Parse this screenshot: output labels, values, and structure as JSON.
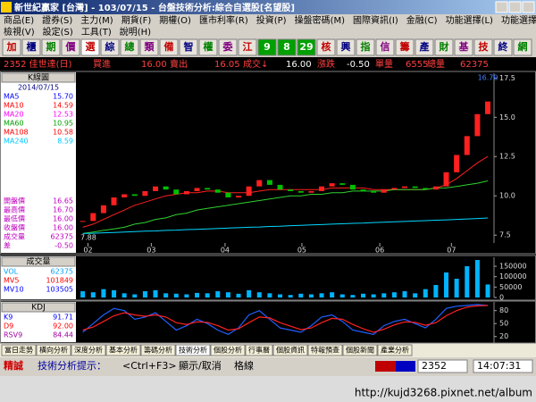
{
  "window": {
    "title": "新世紀贏家 [台灣] - 103/07/15 - 台盤技術分析:綜合自選股[名望股]",
    "menu_row1": [
      "商品(E)",
      "證券(S)",
      "主力(M)",
      "期貨(F)",
      "期權(O)",
      "匯市利率(R)",
      "投資(P)",
      "操盤密碼(M)",
      "國際資訊(I)",
      "金融(C)",
      "功能選擇(L)",
      "功能選擇(L)"
    ],
    "menu_row2": [
      "檢視(V)",
      "設定(S)",
      "工具(T)",
      "說明(H)"
    ]
  },
  "toolbar": [
    "加",
    "櫃",
    "期",
    "價",
    "選",
    "綜",
    "總",
    "類",
    "備",
    "智",
    "權",
    "委",
    "江",
    "9",
    "8",
    "29",
    "核",
    "興",
    "指",
    "信",
    "籌",
    "產",
    "財",
    "基",
    "技",
    "終",
    "網"
  ],
  "quote": {
    "symbol": "2352 佳世達(日)",
    "bid_label": "買進",
    "bid": "16.00",
    "ask_label": "賣出",
    "ask": "16.05",
    "last_label": "成交↓",
    "last": "16.00",
    "change_label": "漲跌",
    "change": "-0.50",
    "lot_label": "單量",
    "lot": "6555",
    "total_label": "總量",
    "total": "62375"
  },
  "chart_data": [
    {
      "type": "candlestick",
      "header": "K線圖",
      "date": "2014/07/15",
      "legend": [
        {
          "label": "MA5",
          "value": "15.70",
          "color": "#0000ff"
        },
        {
          "label": "MA10",
          "value": "14.59",
          "color": "#ff0000"
        },
        {
          "label": "MA20",
          "value": "12.53",
          "color": "#ff00ff"
        },
        {
          "label": "MA60",
          "value": "10.95",
          "color": "#00a000"
        },
        {
          "label": "MA108",
          "value": "10.58",
          "color": "#ff0000"
        },
        {
          "label": "MA240",
          "value": "8.59",
          "color": "#00c8ff"
        }
      ],
      "ohlc": [
        {
          "label": "開盤價",
          "value": "16.65"
        },
        {
          "label": "最高價",
          "value": "16.70"
        },
        {
          "label": "最低價",
          "value": "16.00"
        },
        {
          "label": "收盤價",
          "value": "16.00"
        },
        {
          "label": "成交量",
          "value": "62375"
        },
        {
          "label": "差",
          "value": "-0.50"
        }
      ],
      "high_label": "16.70",
      "low_label": "7.88",
      "xticks": [
        {
          "value": 0.5,
          "label": "02"
        },
        {
          "value": 6.6,
          "label": "03"
        },
        {
          "value": 13.7,
          "label": "04"
        },
        {
          "value": 21.1,
          "label": "05"
        },
        {
          "value": 28.6,
          "label": "06"
        },
        {
          "value": 35.5,
          "label": "07"
        }
      ],
      "xlim": [
        -0.4,
        39.6
      ],
      "ylim": [
        7.0,
        17.8
      ],
      "yticks": [
        7.5,
        {
          "value": 10,
          "label": "10.0"
        },
        12.5,
        {
          "value": 15,
          "label": "15.0"
        },
        17.5
      ],
      "up_color": "#ff2020",
      "down_color": "#00c000",
      "values": [
        8.4,
        8.9,
        9.4,
        9.9,
        10.1,
        10.0,
        10.3,
        10.6,
        10.4,
        10.1,
        10.3,
        10.5,
        10.4,
        10.2,
        9.9,
        10.0,
        10.6,
        11.0,
        10.7,
        10.4,
        10.3,
        10.2,
        10.3,
        10.6,
        10.8,
        10.7,
        10.4,
        10.3,
        10.2,
        10.4,
        10.5,
        10.6,
        10.5,
        10.4,
        10.6,
        11.5,
        12.6,
        13.8,
        15.2,
        16.0
      ],
      "ma_lines": [
        {
          "color": "#ff2020",
          "values": [
            8.0,
            8.2,
            8.5,
            8.8,
            9.1,
            9.4,
            9.6,
            9.8,
            10.0,
            10.1,
            10.2,
            10.2,
            10.3,
            10.3,
            10.2,
            10.2,
            10.2,
            10.3,
            10.4,
            10.4,
            10.4,
            10.4,
            10.4,
            10.4,
            10.5,
            10.5,
            10.5,
            10.5,
            10.4,
            10.4,
            10.4,
            10.4,
            10.4,
            10.4,
            10.5,
            10.7,
            11.1,
            11.6,
            12.1,
            12.5
          ]
        },
        {
          "color": "#30d030",
          "values": [
            7.6,
            7.7,
            7.8,
            7.9,
            8.0,
            8.2,
            8.3,
            8.5,
            8.6,
            8.8,
            8.9,
            9.1,
            9.2,
            9.3,
            9.4,
            9.5,
            9.6,
            9.7,
            9.8,
            9.9,
            10.0,
            10.0,
            10.1,
            10.1,
            10.2,
            10.2,
            10.3,
            10.3,
            10.3,
            10.3,
            10.4,
            10.4,
            10.4,
            10.4,
            10.5,
            10.5,
            10.6,
            10.7,
            10.8,
            10.95
          ]
        },
        {
          "color": "#00d8ff",
          "values": [
            7.6,
            7.62,
            7.65,
            7.67,
            7.7,
            7.72,
            7.75,
            7.77,
            7.8,
            7.82,
            7.85,
            7.87,
            7.9,
            7.92,
            7.95,
            7.97,
            8.0,
            8.02,
            8.05,
            8.07,
            8.1,
            8.12,
            8.15,
            8.17,
            8.2,
            8.22,
            8.25,
            8.27,
            8.3,
            8.32,
            8.35,
            8.37,
            8.4,
            8.42,
            8.45,
            8.47,
            8.5,
            8.53,
            8.56,
            8.59
          ]
        }
      ]
    },
    {
      "type": "bar",
      "header": "成交量",
      "legend": [
        {
          "label": "VOL",
          "value": "62375",
          "color": "#00a0ff"
        },
        {
          "label": "MV5",
          "value": "101849",
          "color": "#ff0000"
        },
        {
          "label": "MV10",
          "value": "103505",
          "color": "#0000ff"
        }
      ],
      "xlim": [
        -0.4,
        39.6
      ],
      "ylim": [
        0,
        193000
      ],
      "yticks": [
        0,
        50000,
        100000,
        150000
      ],
      "color": "#00b4ff",
      "values": [
        30000,
        25000,
        40000,
        35000,
        20000,
        15000,
        30000,
        35000,
        20000,
        18000,
        15000,
        22000,
        20000,
        30000,
        25000,
        18000,
        35000,
        25000,
        20000,
        15000,
        12000,
        18000,
        15000,
        20000,
        25000,
        15000,
        12000,
        18000,
        15000,
        20000,
        25000,
        30000,
        20000,
        40000,
        60000,
        120000,
        90000,
        150000,
        180000,
        62375
      ]
    },
    {
      "type": "line",
      "header": "KDJ",
      "legend": [
        {
          "label": "K9",
          "value": "91.71",
          "color": "#0000ff"
        },
        {
          "label": "D9",
          "value": "92.00",
          "color": "#ff0000"
        },
        {
          "label": "RSV9",
          "value": "84.44",
          "color": "#a000a0"
        }
      ],
      "xlim": [
        -0.4,
        39.6
      ],
      "ylim": [
        5,
        100
      ],
      "yticks": [
        20,
        50,
        80
      ],
      "series": [
        {
          "color": "#2060ff",
          "values": [
            30,
            50,
            70,
            85,
            80,
            60,
            65,
            75,
            55,
            35,
            45,
            60,
            50,
            35,
            25,
            40,
            70,
            80,
            60,
            40,
            35,
            30,
            45,
            65,
            70,
            55,
            35,
            30,
            25,
            45,
            55,
            60,
            50,
            40,
            60,
            85,
            90,
            92,
            94,
            91.71
          ]
        },
        {
          "color": "#ff2020",
          "values": [
            35,
            42,
            55,
            68,
            75,
            70,
            67,
            70,
            65,
            52,
            48,
            54,
            53,
            45,
            35,
            38,
            52,
            65,
            63,
            52,
            44,
            36,
            40,
            52,
            62,
            60,
            48,
            38,
            30,
            37,
            47,
            54,
            53,
            46,
            52,
            68,
            80,
            88,
            91,
            92.0
          ]
        }
      ]
    }
  ],
  "tabs": [
    "當日走勢",
    "橫向分析",
    "深度分析",
    "基本分析",
    "籌碼分析",
    "技術分析",
    "個股分析",
    "行事曆",
    "個股資訊",
    "特報預查",
    "個股新聞",
    "產業分析"
  ],
  "active_tab": 5,
  "status": {
    "brand": "精誠",
    "hint": "技術分析提示：",
    "key": "<Ctrl+F3>",
    "action": "顯示/取消",
    "target": "格線",
    "code": "2352",
    "time": "14:07:31"
  },
  "watermark": "http://kujd3268.pixnet.net/album"
}
